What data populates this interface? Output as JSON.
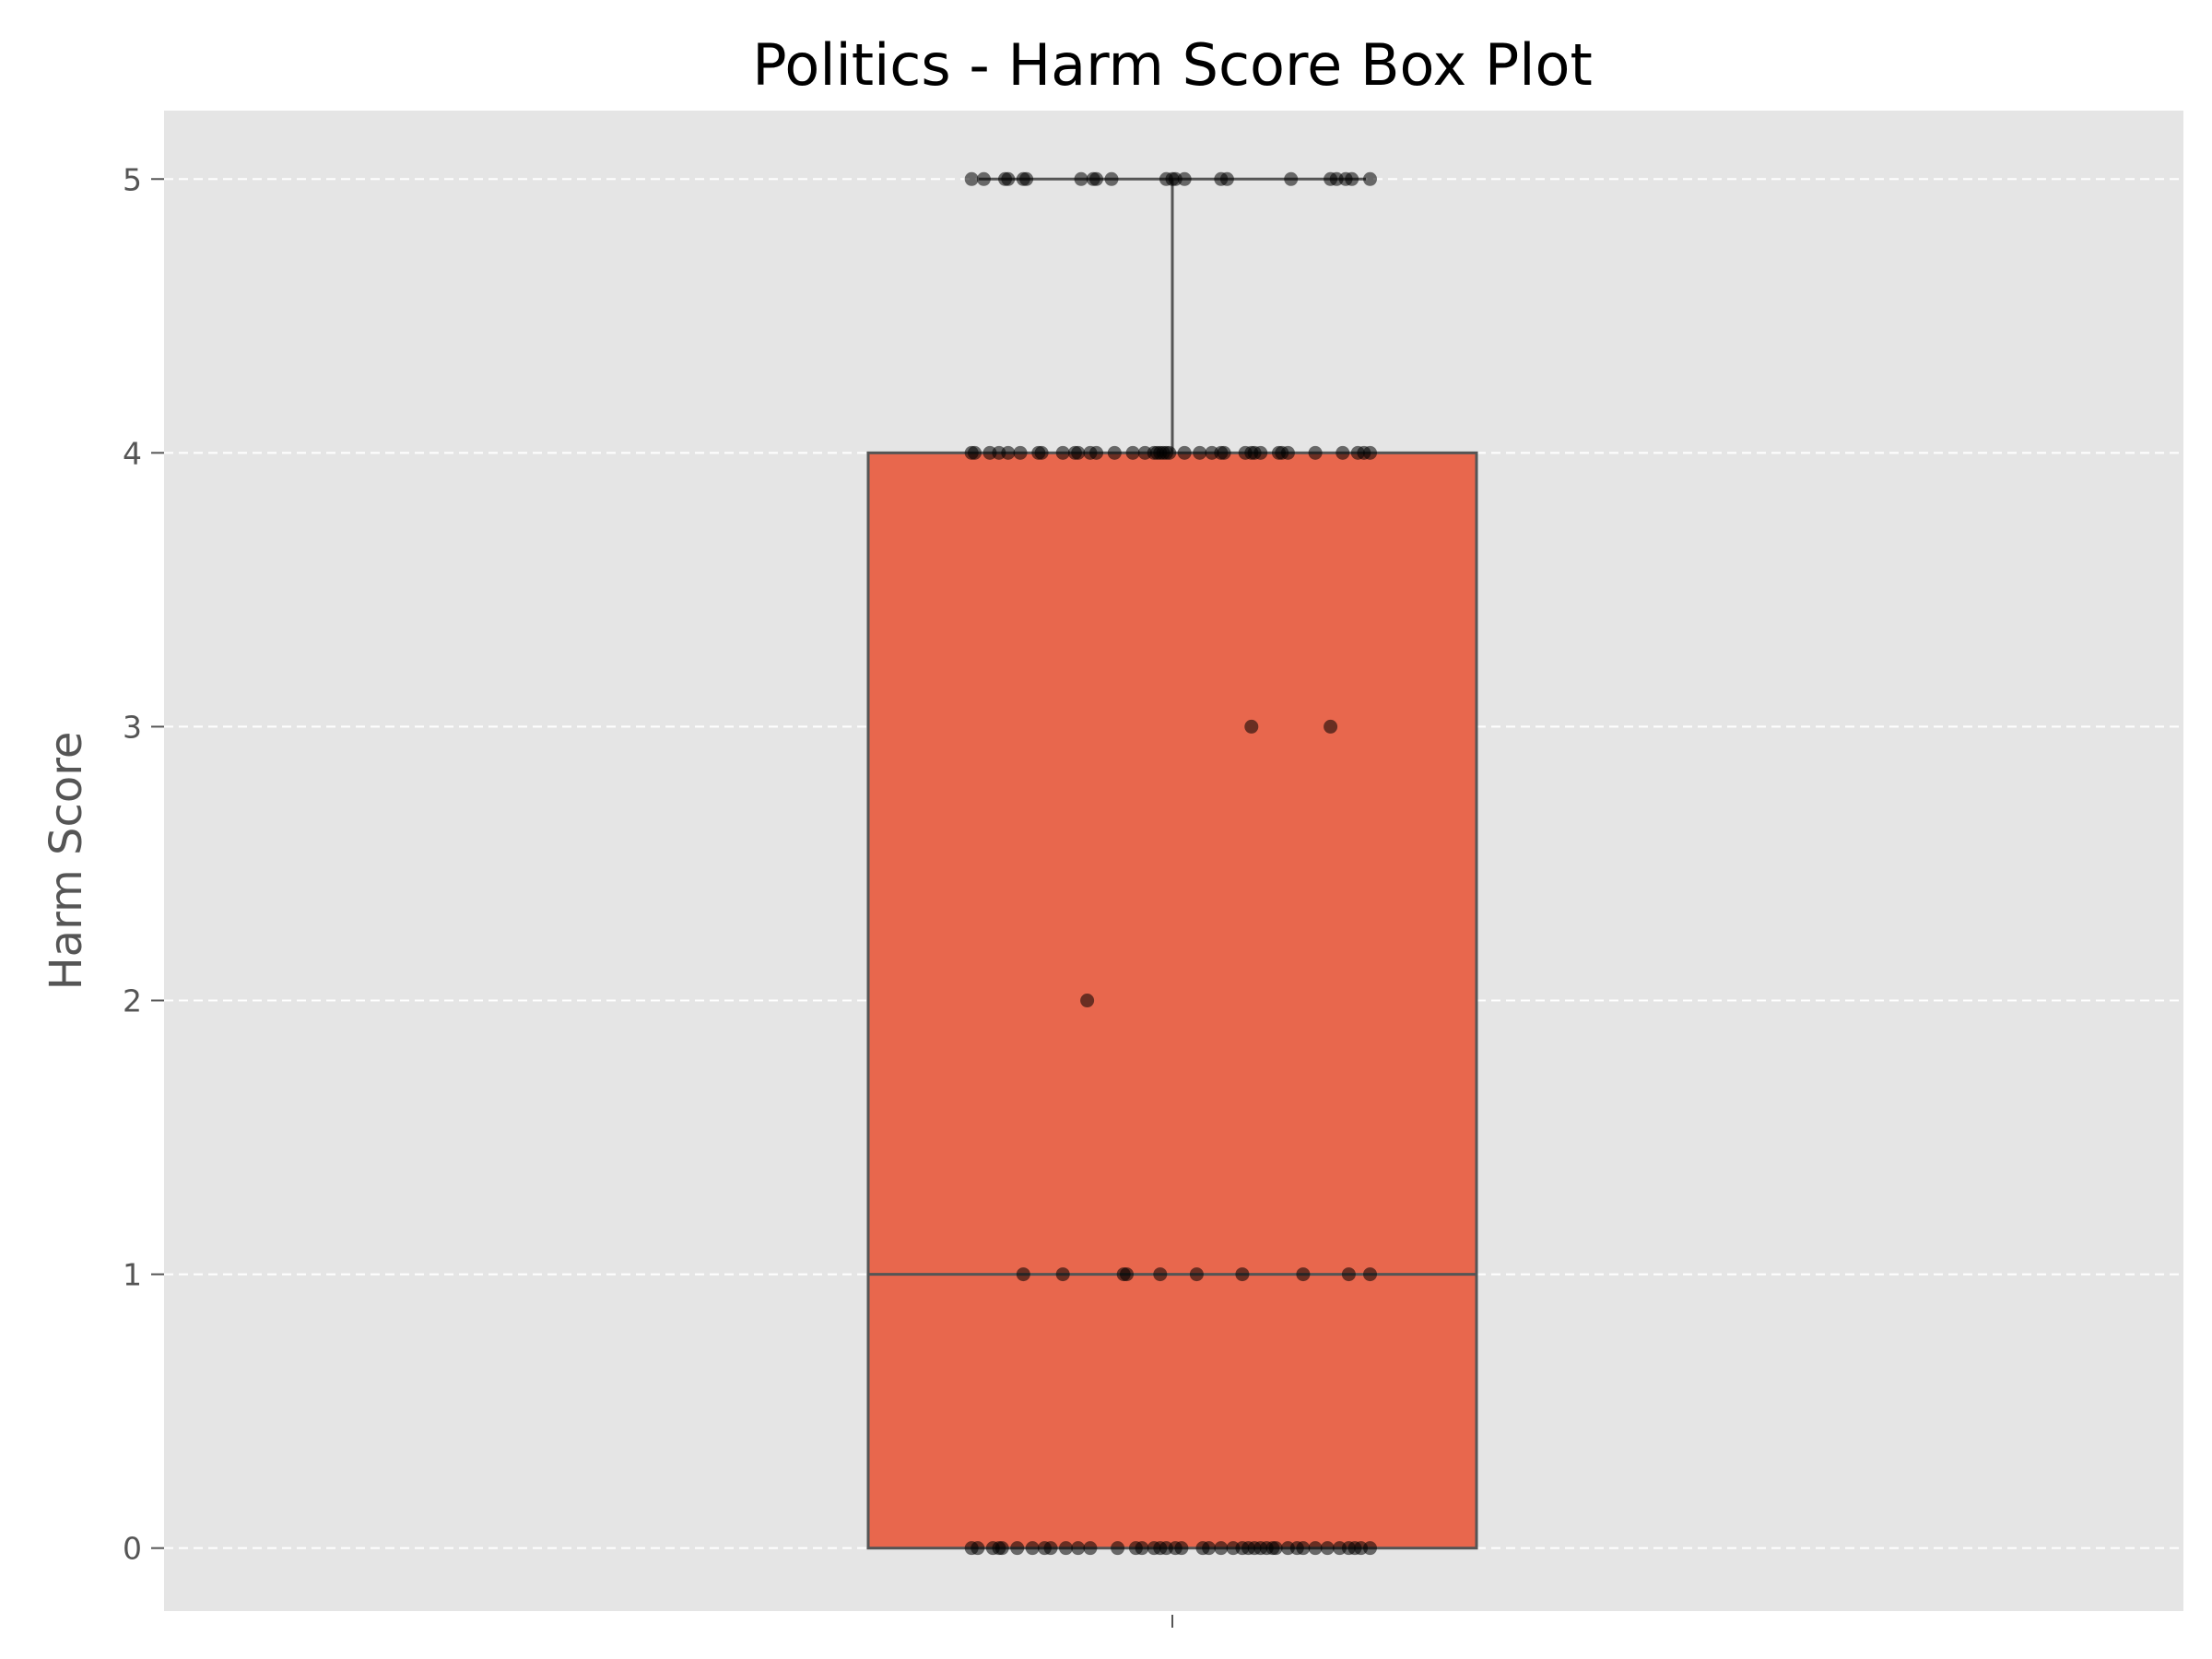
{
  "chart_data": {
    "type": "box",
    "title": "Politics - Harm Score Box Plot",
    "xlabel": "",
    "ylabel": "Harm Score",
    "ylim": [
      -0.23,
      5.25
    ],
    "yticks": [
      "0",
      "1",
      "2",
      "3",
      "4",
      "5"
    ],
    "grid": "horizontal-dashed",
    "box": {
      "min": 0,
      "q1": 0,
      "median": 1,
      "q3": 4,
      "max": 5,
      "fill_color": "#E8674D",
      "edge_color": "#555555"
    },
    "background_color": "#E5E5E5",
    "point_color": "#000000",
    "points": {
      "5": [
        -0.66,
        -0.62,
        -0.55,
        -0.54,
        -0.49,
        -0.48,
        -0.3,
        -0.26,
        -0.25,
        -0.2,
        -0.02,
        0,
        0.01,
        0.04,
        0.16,
        0.18,
        0.39,
        0.52,
        0.54,
        0.57,
        0.59,
        0.65
      ],
      "4": [
        -0.66,
        -0.65,
        -0.6,
        -0.57,
        -0.54,
        -0.5,
        -0.44,
        -0.43,
        -0.36,
        -0.32,
        -0.31,
        -0.27,
        -0.25,
        -0.19,
        -0.13,
        -0.09,
        -0.06,
        -0.05,
        -0.04,
        -0.03,
        -0.02,
        -0.01,
        0.04,
        0.09,
        0.13,
        0.16,
        0.17,
        0.24,
        0.26,
        0.27,
        0.29,
        0.35,
        0.36,
        0.38,
        0.47,
        0.56,
        0.61,
        0.63,
        0.65
      ],
      "3": [
        0.26,
        0.52
      ],
      "2": [
        -0.28
      ],
      "1": [
        -0.49,
        -0.36,
        -0.16,
        -0.15,
        -0.04,
        0.08,
        0.23,
        0.43,
        0.58,
        0.65
      ],
      "0": [
        -0.66,
        -0.64,
        -0.59,
        -0.57,
        -0.56,
        -0.51,
        -0.46,
        -0.42,
        -0.4,
        -0.35,
        -0.31,
        -0.27,
        -0.18,
        -0.12,
        -0.1,
        -0.06,
        -0.04,
        -0.02,
        0.01,
        0.03,
        0.1,
        0.12,
        0.16,
        0.2,
        0.23,
        0.25,
        0.27,
        0.29,
        0.31,
        0.33,
        0.34,
        0.38,
        0.41,
        0.43,
        0.47,
        0.51,
        0.55,
        0.58,
        0.6,
        0.62,
        0.65
      ]
    }
  }
}
